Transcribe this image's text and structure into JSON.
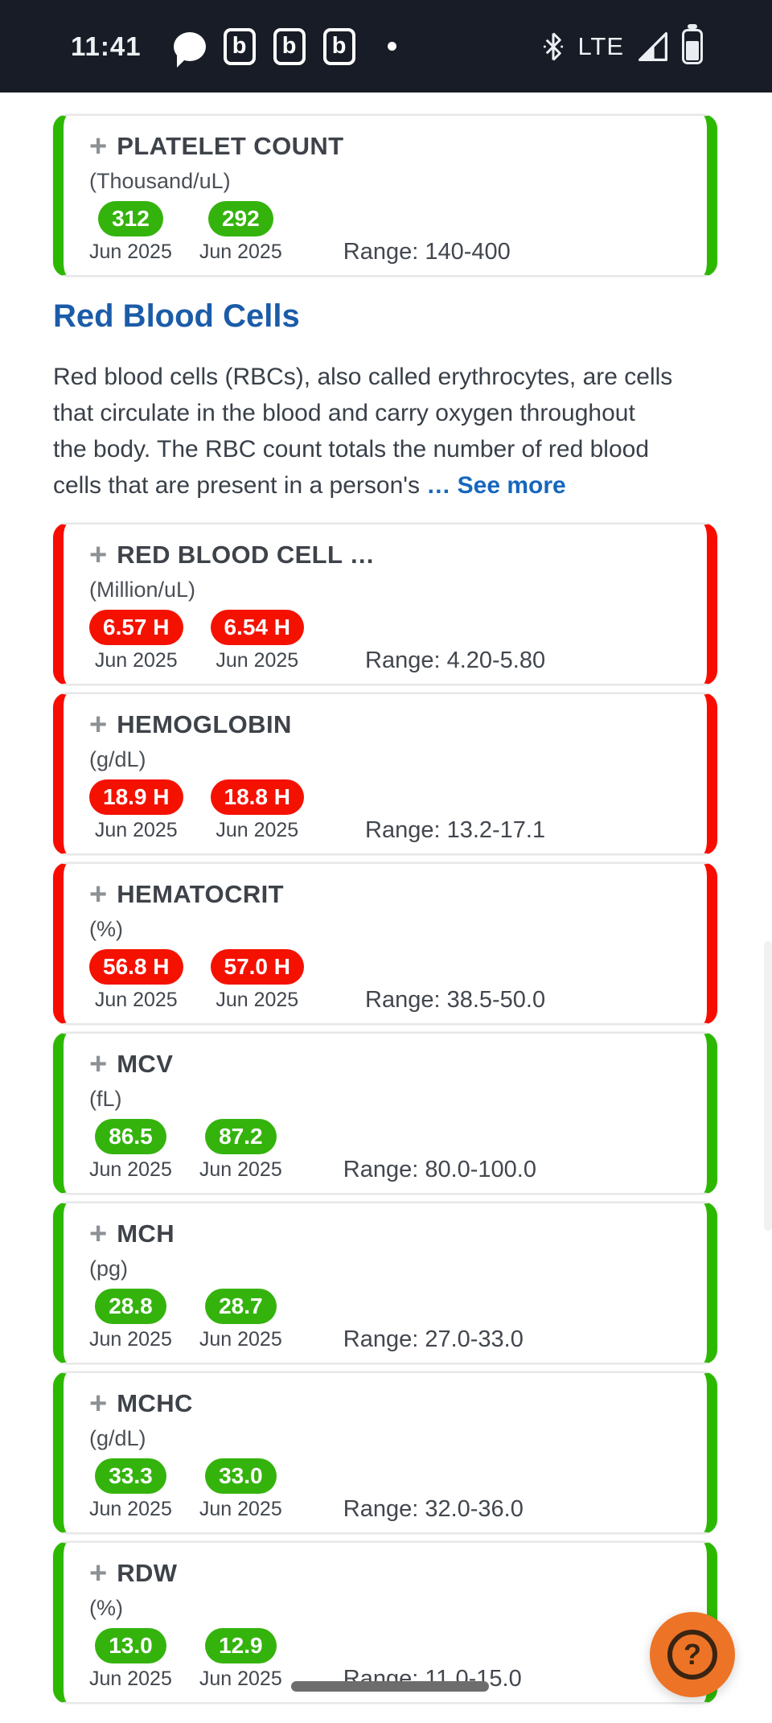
{
  "status_bar": {
    "time": "11:41",
    "app_badge_label": "b",
    "app_badge_count": 3,
    "left_icons": [
      "chat-bubble",
      "app-b",
      "app-b",
      "app-b",
      "notification-dot"
    ],
    "network": "LTE",
    "right_icons": [
      "bluetooth",
      "signal",
      "battery"
    ]
  },
  "ui": {
    "plus_glyph": "+",
    "fab_glyph": "?"
  },
  "cards_before_section": [
    {
      "title": "PLATELET COUNT",
      "unit": "(Thousand/uL)",
      "status": "normal",
      "values": [
        {
          "value": "312",
          "date": "Jun 2025"
        },
        {
          "value": "292",
          "date": "Jun 2025"
        }
      ],
      "range": "Range: 140-400"
    }
  ],
  "section": {
    "heading": "Red Blood Cells",
    "description_lines": [
      "Red blood cells (RBCs), also called erythrocytes, are cells",
      "that circulate in the blood and carry oxygen throughout",
      "the body. The RBC count totals the number of red blood",
      "cells that are present in a person's"
    ],
    "see_more": "… See more"
  },
  "cards_after_section": [
    {
      "title": "RED BLOOD CELL …",
      "unit": "(Million/uL)",
      "status": "high",
      "values": [
        {
          "value": "6.57 H",
          "date": "Jun 2025"
        },
        {
          "value": "6.54 H",
          "date": "Jun 2025"
        }
      ],
      "range": "Range: 4.20-5.80"
    },
    {
      "title": "HEMOGLOBIN",
      "unit": "(g/dL)",
      "status": "high",
      "values": [
        {
          "value": "18.9 H",
          "date": "Jun 2025"
        },
        {
          "value": "18.8 H",
          "date": "Jun 2025"
        }
      ],
      "range": "Range: 13.2-17.1"
    },
    {
      "title": "HEMATOCRIT",
      "unit": "(%)",
      "status": "high",
      "values": [
        {
          "value": "56.8 H",
          "date": "Jun 2025"
        },
        {
          "value": "57.0 H",
          "date": "Jun 2025"
        }
      ],
      "range": "Range: 38.5-50.0"
    },
    {
      "title": "MCV",
      "unit": "(fL)",
      "status": "normal",
      "values": [
        {
          "value": "86.5",
          "date": "Jun 2025"
        },
        {
          "value": "87.2",
          "date": "Jun 2025"
        }
      ],
      "range": "Range: 80.0-100.0"
    },
    {
      "title": "MCH",
      "unit": "(pg)",
      "status": "normal",
      "values": [
        {
          "value": "28.8",
          "date": "Jun 2025"
        },
        {
          "value": "28.7",
          "date": "Jun 2025"
        }
      ],
      "range": "Range: 27.0-33.0"
    },
    {
      "title": "MCHC",
      "unit": "(g/dL)",
      "status": "normal",
      "values": [
        {
          "value": "33.3",
          "date": "Jun 2025"
        },
        {
          "value": "33.0",
          "date": "Jun 2025"
        }
      ],
      "range": "Range: 32.0-36.0"
    },
    {
      "title": "RDW",
      "unit": "(%)",
      "status": "normal",
      "values": [
        {
          "value": "13.0",
          "date": "Jun 2025"
        },
        {
          "value": "12.9",
          "date": "Jun 2025"
        }
      ],
      "range": "Range: 11.0-15.0",
      "has_hscrollbar": true
    }
  ],
  "colors": {
    "normal_border": "#2db800",
    "normal_badge": "#34b30d",
    "high_border": "#f90c00",
    "high_badge": "#f51100",
    "heading_blue": "#1b5ca8",
    "link_blue": "#1667bd",
    "fab_orange": "#ed7426",
    "statusbar_bg": "#171c26"
  }
}
